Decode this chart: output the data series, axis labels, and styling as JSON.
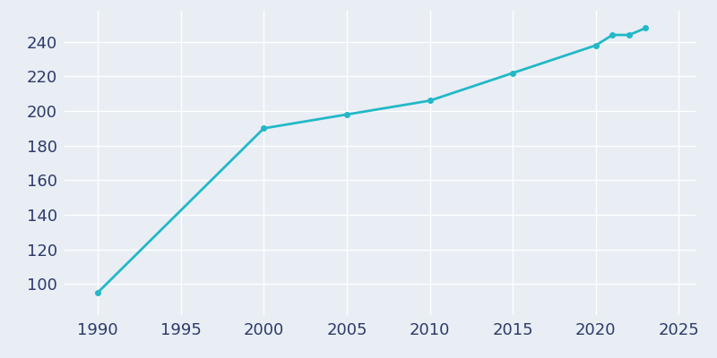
{
  "years": [
    1990,
    2000,
    2005,
    2010,
    2015,
    2020,
    2021,
    2022,
    2023
  ],
  "population": [
    95,
    190,
    198,
    206,
    222,
    238,
    244,
    244,
    248
  ],
  "line_color": "#22B8C8",
  "marker": "o",
  "marker_size": 4,
  "line_width": 2,
  "background_color": "#E8EEF4",
  "grid_color": "#FFFFFF",
  "tick_color": "#2D3A6B",
  "xlim": [
    1988,
    2026
  ],
  "ylim": [
    82,
    258
  ],
  "xticks": [
    1990,
    1995,
    2000,
    2005,
    2010,
    2015,
    2020,
    2025
  ],
  "yticks": [
    100,
    120,
    140,
    160,
    180,
    200,
    220,
    240
  ],
  "tick_fontsize": 13
}
